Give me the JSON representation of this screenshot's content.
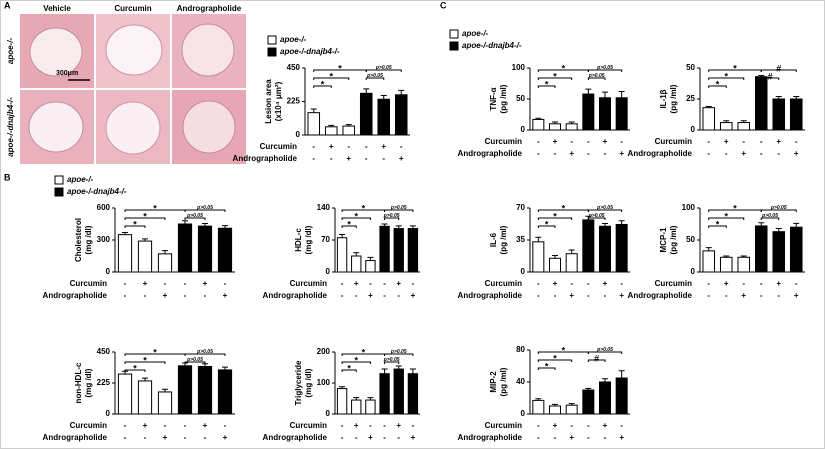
{
  "panels": [
    "A",
    "B",
    "C"
  ],
  "histology": {
    "columns": [
      "Vehicle",
      "Curcumin",
      "Andrographolide"
    ],
    "rows": [
      "apoe-/-",
      "apoe-/-dnajb4-/-"
    ],
    "scale_bar": "300μm"
  },
  "chart_data": [
    {
      "type": "bar",
      "ylabel": [
        "Lesion area",
        "(x10⁴ μm²)"
      ],
      "ylim": [
        0,
        450
      ],
      "yticks": [
        0,
        225,
        450
      ],
      "series": [
        {
          "name": "apoe-/-",
          "color": "#ffffff",
          "values": [
            150,
            55,
            60
          ],
          "errors": [
            25,
            10,
            10
          ]
        },
        {
          "name": "apoe-/-dnajb4-/-",
          "color": "#000000",
          "values": [
            280,
            240,
            270
          ],
          "errors": [
            30,
            25,
            30
          ]
        }
      ],
      "treatments": [
        {
          "name": "Curcumin",
          "signs": [
            "-",
            "+",
            "-",
            "-",
            "+",
            "-"
          ]
        },
        {
          "name": "Andrographolide",
          "signs": [
            "-",
            "-",
            "+",
            "-",
            "-",
            "+"
          ]
        }
      ],
      "brackets": [
        {
          "pair": [
            0,
            3
          ],
          "label": "*"
        },
        {
          "pair": [
            0,
            2
          ],
          "label": "*"
        },
        {
          "pair": [
            0,
            1
          ],
          "label": "*"
        },
        {
          "pair": [
            3,
            5
          ],
          "label": "p>0.05"
        },
        {
          "pair": [
            3,
            4
          ],
          "label": "p>0.05"
        }
      ]
    },
    {
      "type": "bar",
      "ylabel": [
        "Cholesterol",
        "(mg /dl)"
      ],
      "ylim": [
        0,
        600
      ],
      "yticks": [
        0,
        300,
        600
      ],
      "series": [
        {
          "name": "apoe-/-",
          "color": "#ffffff",
          "values": [
            350,
            290,
            170
          ],
          "errors": [
            20,
            20,
            30
          ]
        },
        {
          "name": "apoe-/-dnajb4-/-",
          "color": "#000000",
          "values": [
            450,
            430,
            410
          ],
          "errors": [
            30,
            25,
            25
          ]
        }
      ],
      "treatments": [
        {
          "name": "Curcumin",
          "signs": [
            "-",
            "+",
            "-",
            "-",
            "+",
            "-"
          ]
        },
        {
          "name": "Andrographolide",
          "signs": [
            "-",
            "-",
            "+",
            "-",
            "-",
            "+"
          ]
        }
      ],
      "brackets": [
        {
          "pair": [
            0,
            3
          ],
          "label": "*"
        },
        {
          "pair": [
            0,
            2
          ],
          "label": "*"
        },
        {
          "pair": [
            0,
            1
          ],
          "label": "*"
        },
        {
          "pair": [
            3,
            5
          ],
          "label": "p>0.05"
        },
        {
          "pair": [
            3,
            4
          ],
          "label": "p>0.05"
        }
      ]
    },
    {
      "type": "bar",
      "ylabel": [
        "HDL-c",
        "(mg /dl)"
      ],
      "ylim": [
        0,
        140
      ],
      "yticks": [
        0,
        70,
        140
      ],
      "series": [
        {
          "color": "#ffffff",
          "values": [
            75,
            35,
            25
          ],
          "errors": [
            7,
            7,
            7
          ]
        },
        {
          "color": "#000000",
          "values": [
            100,
            95,
            95
          ],
          "errors": [
            5,
            6,
            6
          ]
        }
      ],
      "treatments": [
        {
          "name": "Curcumin",
          "signs": [
            "-",
            "+",
            "-",
            "-",
            "+",
            "-"
          ]
        },
        {
          "name": "Andrographolide",
          "signs": [
            "-",
            "-",
            "+",
            "-",
            "-",
            "+"
          ]
        }
      ],
      "brackets": [
        {
          "pair": [
            0,
            3
          ],
          "label": "*"
        },
        {
          "pair": [
            0,
            2
          ],
          "label": "*"
        },
        {
          "pair": [
            0,
            1
          ],
          "label": "*"
        },
        {
          "pair": [
            3,
            5
          ],
          "label": "p>0.05"
        },
        {
          "pair": [
            3,
            4
          ],
          "label": "p>0.05"
        }
      ]
    },
    {
      "type": "bar",
      "ylabel": [
        "non-HDL-c",
        "(mg /dl)"
      ],
      "ylim": [
        0,
        450
      ],
      "yticks": [
        0,
        225,
        450
      ],
      "series": [
        {
          "color": "#ffffff",
          "values": [
            290,
            240,
            160
          ],
          "errors": [
            20,
            20,
            20
          ]
        },
        {
          "color": "#000000",
          "values": [
            350,
            345,
            320
          ],
          "errors": [
            20,
            20,
            20
          ]
        }
      ],
      "treatments": [
        {
          "name": "Curcumin",
          "signs": [
            "-",
            "+",
            "-",
            "-",
            "+",
            "-"
          ]
        },
        {
          "name": "Andrographolide",
          "signs": [
            "-",
            "-",
            "+",
            "-",
            "-",
            "+"
          ]
        }
      ],
      "brackets": [
        {
          "pair": [
            0,
            3
          ],
          "label": "*"
        },
        {
          "pair": [
            0,
            2
          ],
          "label": "*"
        },
        {
          "pair": [
            0,
            1
          ],
          "label": "*"
        },
        {
          "pair": [
            3,
            5
          ],
          "label": "p>0.05"
        },
        {
          "pair": [
            3,
            4
          ],
          "label": "p>0.05"
        }
      ]
    },
    {
      "type": "bar",
      "ylabel": [
        "Triglyceride",
        "(mg /dl)"
      ],
      "ylim": [
        0,
        200
      ],
      "yticks": [
        0,
        100,
        200
      ],
      "series": [
        {
          "color": "#ffffff",
          "values": [
            82,
            45,
            45
          ],
          "errors": [
            6,
            8,
            8
          ]
        },
        {
          "color": "#000000",
          "values": [
            130,
            145,
            130
          ],
          "errors": [
            15,
            10,
            15
          ]
        }
      ],
      "treatments": [
        {
          "name": "Curcumin",
          "signs": [
            "-",
            "+",
            "-",
            "-",
            "+",
            "-"
          ]
        },
        {
          "name": "Andrographolide",
          "signs": [
            "-",
            "-",
            "+",
            "-",
            "-",
            "+"
          ]
        }
      ],
      "brackets": [
        {
          "pair": [
            0,
            3
          ],
          "label": "*"
        },
        {
          "pair": [
            0,
            2
          ],
          "label": "*"
        },
        {
          "pair": [
            0,
            1
          ],
          "label": "*"
        },
        {
          "pair": [
            3,
            5
          ],
          "label": "p>0.05"
        },
        {
          "pair": [
            3,
            4
          ],
          "label": "p>0.05"
        }
      ]
    },
    {
      "type": "bar",
      "ylabel": [
        "TNF-α",
        "(pg /ml)"
      ],
      "ylim": [
        0,
        100
      ],
      "yticks": [
        0,
        50,
        100
      ],
      "series": [
        {
          "name": "apoe-/-",
          "color": "#ffffff",
          "values": [
            17,
            10,
            10
          ],
          "errors": [
            2,
            3,
            3
          ]
        },
        {
          "name": "apoe-/-dnajb4-/-",
          "color": "#000000",
          "values": [
            58,
            52,
            52
          ],
          "errors": [
            8,
            9,
            10
          ]
        }
      ],
      "treatments": [
        {
          "name": "Curcumin",
          "signs": [
            "-",
            "+",
            "-",
            "-",
            "+",
            "-"
          ]
        },
        {
          "name": "Andrographolide",
          "signs": [
            "-",
            "-",
            "+",
            "-",
            "-",
            "+"
          ]
        }
      ],
      "brackets": [
        {
          "pair": [
            0,
            3
          ],
          "label": "*"
        },
        {
          "pair": [
            0,
            2
          ],
          "label": "*"
        },
        {
          "pair": [
            0,
            1
          ],
          "label": "*"
        },
        {
          "pair": [
            3,
            5
          ],
          "label": "p>0.05"
        },
        {
          "pair": [
            3,
            4
          ],
          "label": "p>0.05"
        }
      ]
    },
    {
      "type": "bar",
      "ylabel": [
        "IL-1β",
        "(pg /ml)"
      ],
      "ylim": [
        0,
        50
      ],
      "yticks": [
        0,
        25,
        50
      ],
      "series": [
        {
          "color": "#ffffff",
          "values": [
            18,
            6,
            6
          ],
          "errors": [
            1,
            1.5,
            1.5
          ]
        },
        {
          "color": "#000000",
          "values": [
            43,
            25,
            25
          ],
          "errors": [
            1,
            2,
            2
          ]
        }
      ],
      "treatments": [
        {
          "name": "Curcumin",
          "signs": [
            "-",
            "+",
            "-",
            "-",
            "+",
            "-"
          ]
        },
        {
          "name": "Andrographolide",
          "signs": [
            "-",
            "-",
            "+",
            "-",
            "-",
            "+"
          ]
        }
      ],
      "brackets": [
        {
          "pair": [
            0,
            3
          ],
          "label": "*"
        },
        {
          "pair": [
            0,
            2
          ],
          "label": "*"
        },
        {
          "pair": [
            0,
            1
          ],
          "label": "*"
        },
        {
          "pair": [
            3,
            5
          ],
          "label": "#"
        },
        {
          "pair": [
            3,
            4
          ],
          "label": "#"
        }
      ]
    },
    {
      "type": "bar",
      "ylabel": [
        "IL-6",
        "(pg /ml)"
      ],
      "ylim": [
        0,
        70
      ],
      "yticks": [
        0,
        35,
        70
      ],
      "series": [
        {
          "color": "#ffffff",
          "values": [
            33,
            15,
            20
          ],
          "errors": [
            5,
            3,
            4
          ]
        },
        {
          "color": "#000000",
          "values": [
            57,
            50,
            52
          ],
          "errors": [
            4,
            3,
            4
          ]
        }
      ],
      "treatments": [
        {
          "name": "Curcumin",
          "signs": [
            "-",
            "+",
            "-",
            "-",
            "+",
            "-"
          ]
        },
        {
          "name": "Andrographolide",
          "signs": [
            "-",
            "-",
            "+",
            "-",
            "-",
            "+"
          ]
        }
      ],
      "brackets": [
        {
          "pair": [
            0,
            3
          ],
          "label": "*"
        },
        {
          "pair": [
            0,
            2
          ],
          "label": "*"
        },
        {
          "pair": [
            0,
            1
          ],
          "label": "*"
        },
        {
          "pair": [
            3,
            5
          ],
          "label": "p>0.05"
        },
        {
          "pair": [
            3,
            4
          ],
          "label": "p>0.05"
        }
      ]
    },
    {
      "type": "bar",
      "ylabel": [
        "MCP-1",
        "(pg /ml)"
      ],
      "ylim": [
        0,
        100
      ],
      "yticks": [
        0,
        50,
        100
      ],
      "series": [
        {
          "color": "#ffffff",
          "values": [
            33,
            23,
            23
          ],
          "errors": [
            5,
            2,
            2
          ]
        },
        {
          "color": "#000000",
          "values": [
            72,
            63,
            70
          ],
          "errors": [
            5,
            5,
            6
          ]
        }
      ],
      "treatments": [
        {
          "name": "Curcumin",
          "signs": [
            "-",
            "+",
            "-",
            "-",
            "+",
            "-"
          ]
        },
        {
          "name": "Andrographolide",
          "signs": [
            "-",
            "-",
            "+",
            "-",
            "-",
            "+"
          ]
        }
      ],
      "brackets": [
        {
          "pair": [
            0,
            3
          ],
          "label": "*"
        },
        {
          "pair": [
            0,
            2
          ],
          "label": "*"
        },
        {
          "pair": [
            0,
            1
          ],
          "label": "*"
        },
        {
          "pair": [
            3,
            5
          ],
          "label": "p>0.05"
        },
        {
          "pair": [
            3,
            4
          ],
          "label": "p>0.05"
        }
      ]
    },
    {
      "type": "bar",
      "ylabel": [
        "MIP-2",
        "(pg /ml)"
      ],
      "ylim": [
        0,
        80
      ],
      "yticks": [
        0,
        40,
        80
      ],
      "series": [
        {
          "color": "#ffffff",
          "values": [
            17,
            10,
            11
          ],
          "errors": [
            2,
            2,
            2
          ]
        },
        {
          "color": "#000000",
          "values": [
            30,
            40,
            45
          ],
          "errors": [
            2,
            4,
            9
          ]
        }
      ],
      "treatments": [
        {
          "name": "Curcumin",
          "signs": [
            "-",
            "+",
            "-",
            "-",
            "+",
            "-"
          ]
        },
        {
          "name": "Andrographolide",
          "signs": [
            "-",
            "-",
            "+",
            "-",
            "-",
            "+"
          ]
        }
      ],
      "brackets": [
        {
          "pair": [
            0,
            3
          ],
          "label": "*"
        },
        {
          "pair": [
            0,
            2
          ],
          "label": "*"
        },
        {
          "pair": [
            0,
            1
          ],
          "label": "*"
        },
        {
          "pair": [
            3,
            5
          ],
          "label": "p>0.05"
        },
        {
          "pair": [
            3,
            4
          ],
          "label": "#"
        }
      ]
    }
  ]
}
